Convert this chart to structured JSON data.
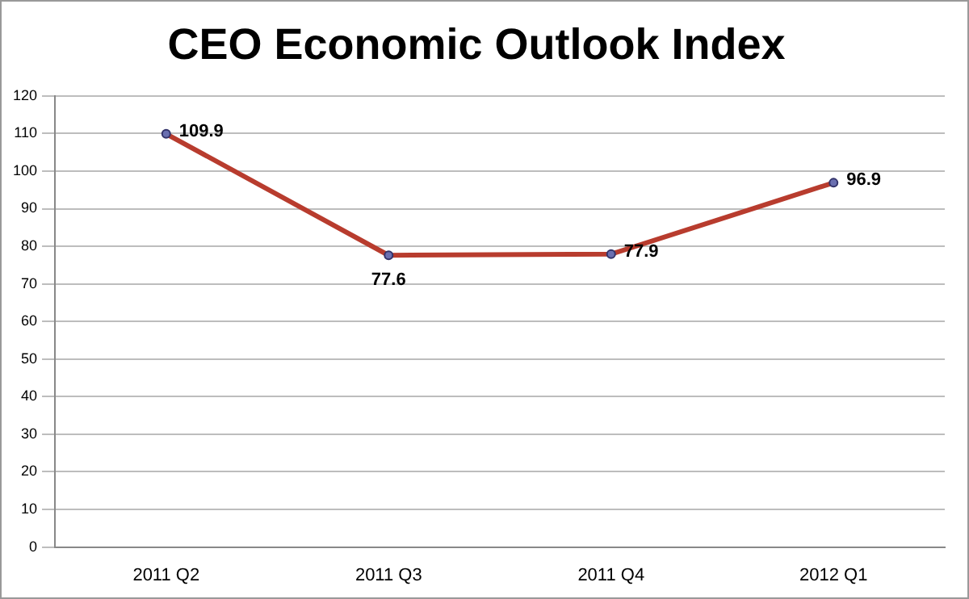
{
  "chart_data": {
    "type": "line",
    "title": "CEO Economic Outlook Index",
    "categories": [
      "2011 Q2",
      "2011 Q3",
      "2011 Q4",
      "2012 Q1"
    ],
    "series": [
      {
        "color": "#b83c2e",
        "values": [
          109.9,
          77.6,
          77.9,
          96.9
        ]
      }
    ],
    "ylim": [
      0,
      120
    ],
    "yticks": [
      0,
      10,
      20,
      30,
      40,
      50,
      60,
      70,
      80,
      90,
      100,
      110,
      120
    ],
    "grid": "y",
    "marker": "circle",
    "data_labels": true,
    "legend": false
  }
}
